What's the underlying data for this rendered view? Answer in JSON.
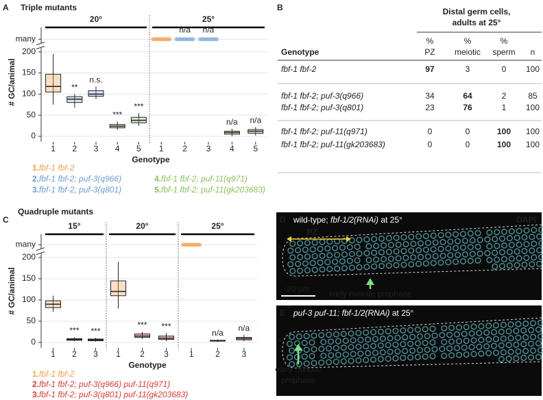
{
  "chart_data": [
    {
      "type": "box",
      "panel_label": "A",
      "title": "Triple mutants",
      "y_label": "# GC/animal",
      "x_label": "Genotype",
      "ylim": [
        -13,
        258
      ],
      "yticks": [
        0,
        50,
        100,
        150,
        200,
        {
          "value": 230,
          "label": "many"
        }
      ],
      "grid": true,
      "groups": [
        {
          "label": "20°",
          "categories": [
            "1",
            "2",
            "3",
            "4",
            "5"
          ],
          "colors": [
            "#f2a45a",
            "#88aedc",
            "#88aedc",
            "#9bcb6f",
            "#9bcb6f"
          ],
          "boxes": [
            {
              "min": 75,
              "q1": 105,
              "median": 118,
              "q3": 147,
              "max": 195
            },
            {
              "min": 68,
              "q1": 80,
              "median": 88,
              "q3": 94,
              "max": 100
            },
            {
              "min": 88,
              "q1": 95,
              "median": 100,
              "q3": 108,
              "max": 118
            },
            {
              "min": 15,
              "q1": 20,
              "median": 24,
              "q3": 28,
              "max": 35
            },
            {
              "min": 25,
              "q1": 32,
              "median": 38,
              "q3": 45,
              "max": 55
            }
          ],
          "annotations": [
            null,
            "**",
            "n.s.",
            "***",
            "***"
          ]
        },
        {
          "label": "25°",
          "categories": [
            "1",
            "2",
            "3",
            "4",
            "5"
          ],
          "colors": [
            "#f2a45a",
            "#88aedc",
            "#88aedc",
            "#9bcb6f",
            "#9bcb6f"
          ],
          "boxes": [
            {
              "many": true
            },
            {
              "many": true
            },
            {
              "many": true
            },
            {
              "min": 0,
              "q1": 5,
              "median": 9,
              "q3": 12,
              "max": 18
            },
            {
              "min": 2,
              "q1": 7,
              "median": 12,
              "q3": 16,
              "max": 22
            }
          ],
          "annotations": [
            null,
            "n/a",
            "n/a",
            "n/a",
            "n/a"
          ]
        }
      ],
      "legend": [
        {
          "number": "1.",
          "name": "fbf-1 fbf-2",
          "color": "#f0a050"
        },
        {
          "number": "2.",
          "name": "fbf-1 fbf-2; puf-3(q966)",
          "color": "#6b9bd3"
        },
        {
          "number": "3.",
          "name": "fbf-1 fbf-2; puf-3(q801)",
          "color": "#6b9bd3"
        },
        {
          "number": "4.",
          "name": "fbf-1 fbf-2; puf-11(q971)",
          "color": "#8cbf5c"
        },
        {
          "number": "5.",
          "name": "fbf-1 fbf-2; puf-11(gk203683)",
          "color": "#8cbf5c"
        }
      ]
    },
    {
      "type": "box",
      "panel_label": "C",
      "title": "Quadruple mutants",
      "y_label": "# GC/animal",
      "x_label": "Genotype",
      "ylim": [
        -13,
        258
      ],
      "yticks": [
        0,
        50,
        100,
        150,
        200,
        {
          "value": 230,
          "label": "many"
        }
      ],
      "grid": true,
      "groups": [
        {
          "label": "15°",
          "categories": [
            "1",
            "2",
            "3"
          ],
          "colors": [
            "#f2a45a",
            "#e0463f",
            "#e0463f"
          ],
          "boxes": [
            {
              "min": 72,
              "q1": 82,
              "median": 90,
              "q3": 98,
              "max": 110
            },
            {
              "min": 3,
              "q1": 5,
              "median": 7,
              "q3": 9,
              "max": 12
            },
            {
              "min": 2,
              "q1": 4,
              "median": 6,
              "q3": 8,
              "max": 11
            }
          ],
          "annotations": [
            null,
            "***",
            "***"
          ]
        },
        {
          "label": "20°",
          "categories": [
            "1",
            "2",
            "3"
          ],
          "colors": [
            "#f2a45a",
            "#e0463f",
            "#e0463f"
          ],
          "boxes": [
            {
              "min": 80,
              "q1": 110,
              "median": 120,
              "q3": 145,
              "max": 190
            },
            {
              "min": 8,
              "q1": 12,
              "median": 15,
              "q3": 20,
              "max": 25
            },
            {
              "min": 3,
              "q1": 7,
              "median": 10,
              "q3": 15,
              "max": 22
            }
          ],
          "annotations": [
            null,
            "***",
            "***"
          ]
        },
        {
          "label": "25°",
          "categories": [
            "1",
            "2",
            "3"
          ],
          "colors": [
            "#f2a45a",
            "#e0463f",
            "#e0463f"
          ],
          "boxes": [
            {
              "many": true
            },
            {
              "min": 1,
              "q1": 3,
              "median": 4,
              "q3": 5,
              "max": 7
            },
            {
              "min": 3,
              "q1": 6,
              "median": 9,
              "q3": 12,
              "max": 18
            }
          ],
          "annotations": [
            null,
            "n/a",
            "n/a"
          ]
        }
      ],
      "legend": [
        {
          "number": "1.",
          "name": "fbf-1 fbf-2",
          "color": "#f0a050"
        },
        {
          "number": "2.",
          "name": "fbf-1 fbf-2; puf-3(q966) puf-11(q971)",
          "color": "#d83a3a"
        },
        {
          "number": "3.",
          "name": "fbf-1 fbf-2; puf-3(q801) puf-11(gk203683)",
          "color": "#d83a3a"
        }
      ]
    }
  ],
  "table": {
    "panel_label": "B",
    "title": [
      "Distal germ cells,",
      "adults at 25°"
    ],
    "columns": [
      [
        "Genotype"
      ],
      [
        "%",
        "PZ"
      ],
      [
        "%",
        "meiotic"
      ],
      [
        "%",
        "sperm"
      ],
      [
        "n"
      ]
    ],
    "rows": [
      {
        "genotype": "fbf-1 fbf-2",
        "cells": [
          97,
          3,
          0,
          100
        ],
        "bold": 0
      },
      {
        "genotype": "fbf-1 fbf-2; puf-3(q966)",
        "cells": [
          34,
          64,
          2,
          85
        ],
        "bold": 1
      },
      {
        "genotype": "fbf-1 fbf-2; puf-3(q801)",
        "cells": [
          23,
          76,
          1,
          100
        ],
        "bold": 1
      },
      {
        "genotype": "fbf-1 fbf-2; puf-11(q971)",
        "cells": [
          0,
          0,
          100,
          100
        ],
        "bold": 2
      },
      {
        "genotype": "fbf-1 fbf-2; puf-11(gk203683)",
        "cells": [
          0,
          0,
          100,
          100
        ],
        "bold": 2
      }
    ]
  },
  "images": [
    {
      "panel_label": "D",
      "caption": [
        {
          "text": "wild-type; "
        },
        {
          "text": "fbf-1/2(RNAi)",
          "italic": true
        },
        {
          "text": " at 25°"
        }
      ],
      "stain": "DAPI",
      "region_label": "PZ",
      "scale_bar": "20 µm",
      "tip_marker": "*",
      "arrow_label": [
        "early meiotic prophase"
      ]
    },
    {
      "panel_label": "E",
      "caption": [
        {
          "text": "puf-3 puf-11; fbf-1/2(RNAi)",
          "italic": true
        },
        {
          "text": " at 25°"
        }
      ],
      "tip_marker": "*",
      "arrow_label": [
        "early meiotic",
        "prophase"
      ]
    }
  ]
}
